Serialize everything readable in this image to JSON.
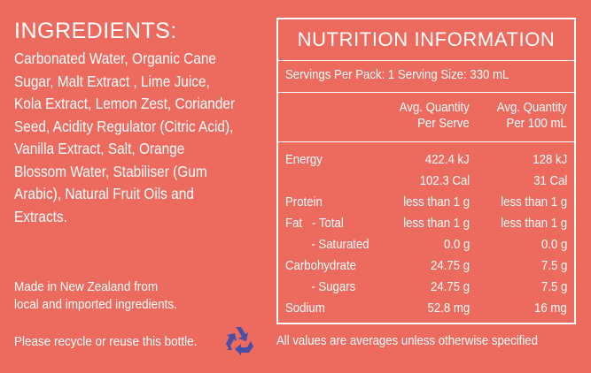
{
  "ingredients": {
    "heading": "INGREDIENTS:",
    "lines": [
      "Carbonated Water, Organic Cane",
      "Sugar, Malt Extract  , Lime Juice,",
      "Kola Extract, Lemon Zest, Coriander",
      "Seed, Acidity Regulator (Citric Acid),",
      "Vanilla Extract, Salt, Orange",
      "Blossom Water, Stabiliser (Gum",
      "Arabic), Natural Fruit Oils and",
      "Extracts."
    ]
  },
  "origin": {
    "line1": "Made in New Zealand from",
    "line2": "local and imported ingredients."
  },
  "recycle": {
    "text": "Please recycle or reuse this bottle.",
    "icon": "recycle-icon",
    "icon_color": "#4A4FA6"
  },
  "nutrition": {
    "title": "NUTRITION INFORMATION",
    "servings": "Servings Per Pack: 1  Serving Size: 330 mL",
    "col1_header_1": "Avg. Quantity",
    "col1_header_2": "Per Serve",
    "col2_header_1": "Avg. Quantity",
    "col2_header_2": "Per 100 mL",
    "rows": [
      {
        "label": "Energy",
        "per_serve": "422.4 kJ",
        "per_100": "128 kJ"
      },
      {
        "label": "",
        "per_serve": "102.3 Cal",
        "per_100": "31 Cal"
      },
      {
        "label": "Protein",
        "per_serve": "less than 1 g",
        "per_100": "less than 1 g"
      },
      {
        "label": "Fat   - Total",
        "per_serve": "less than 1 g",
        "per_100": "less than 1 g"
      },
      {
        "label": "        - Saturated",
        "per_serve": "0.0 g",
        "per_100": "0.0 g"
      },
      {
        "label": "Carbohydrate",
        "per_serve": "24.75 g",
        "per_100": "7.5 g"
      },
      {
        "label": "        - Sugars",
        "per_serve": "24.75 g",
        "per_100": "7.5 g"
      },
      {
        "label": "Sodium",
        "per_serve": "52.8 mg",
        "per_100": "16 mg"
      }
    ],
    "footnote": "All values are averages unless otherwise specified"
  },
  "colors": {
    "background": "#EC6A5E",
    "text": "#FFFFFF"
  }
}
